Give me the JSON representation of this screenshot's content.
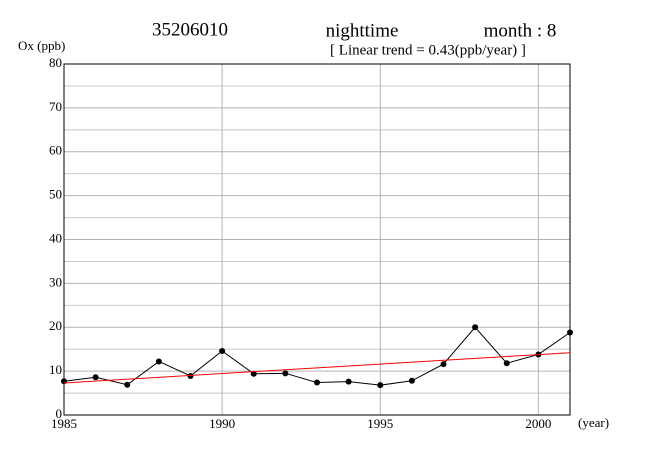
{
  "chart_data": {
    "type": "line",
    "title": "35206010",
    "title_middle": "nighttime",
    "title_right": "month : 8",
    "subtitle": "[ Linear trend = 0.43(ppb/year) ]",
    "y_label": "Ox (ppb)",
    "x_label": "(year)",
    "x": [
      1985,
      1986,
      1987,
      1988,
      1989,
      1990,
      1991,
      1992,
      1993,
      1994,
      1995,
      1996,
      1997,
      1998,
      1999,
      2000,
      2001
    ],
    "series": [
      {
        "color": "#000000",
        "marker": true,
        "values": [
          7.7,
          8.6,
          6.9,
          12.2,
          8.9,
          14.6,
          9.4,
          9.5,
          7.4,
          7.6,
          6.8,
          7.8,
          11.6,
          20.0,
          11.8,
          13.8,
          18.8
        ]
      },
      {
        "color": "#ff0000",
        "marker": false,
        "x": [
          1985,
          2001
        ],
        "values": [
          7.3,
          14.2
        ]
      }
    ],
    "xlim": [
      1985,
      2001
    ],
    "xticks": [
      1985,
      1990,
      1995,
      2000
    ],
    "ylim": [
      0,
      80
    ],
    "yticks": [
      0,
      10,
      20,
      30,
      40,
      50,
      60,
      70,
      80
    ],
    "minor_yticks": [
      5,
      15,
      25,
      35,
      45,
      55,
      65,
      75
    ],
    "grid": true
  }
}
